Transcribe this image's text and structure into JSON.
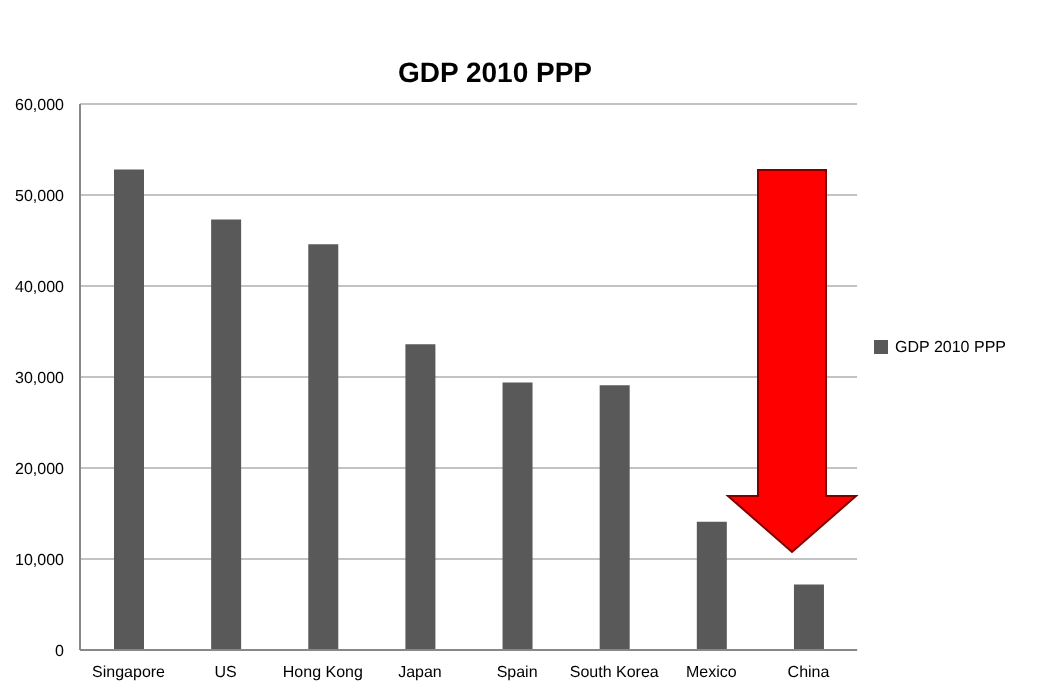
{
  "chart_data": {
    "type": "bar",
    "title": "GDP 2010 PPP",
    "categories": [
      "Singapore",
      "US",
      "Hong Kong",
      "Japan",
      "Spain",
      "South Korea",
      "Mexico",
      "China"
    ],
    "series": [
      {
        "name": "GDP 2010 PPP",
        "color": "#595959",
        "values": [
          52800,
          47300,
          44600,
          33600,
          29400,
          29100,
          14100,
          7200
        ]
      }
    ],
    "ylim": [
      0,
      60000
    ],
    "yticks": [
      {
        "value": 0,
        "label": "0"
      },
      {
        "value": 10000,
        "label": "10,000"
      },
      {
        "value": 20000,
        "label": "20,000"
      },
      {
        "value": 30000,
        "label": "30,000"
      },
      {
        "value": 40000,
        "label": "40,000"
      },
      {
        "value": 50000,
        "label": "50,000"
      },
      {
        "value": 60000,
        "label": "60,000"
      }
    ],
    "grid": "y",
    "legend": "right"
  }
}
